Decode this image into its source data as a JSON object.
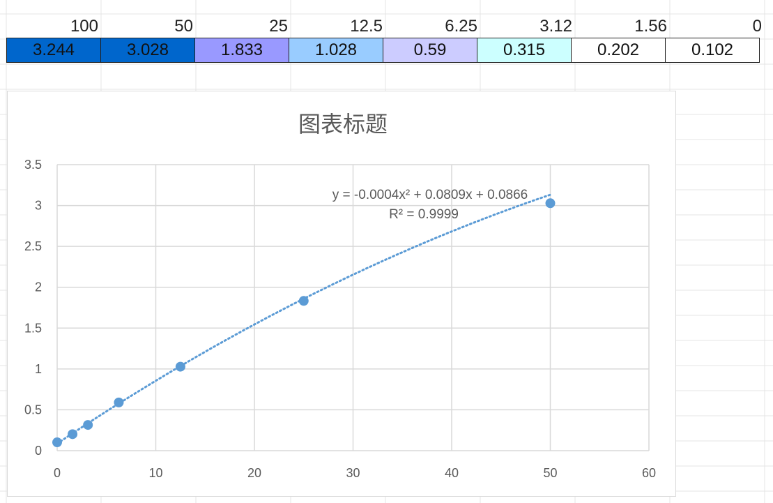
{
  "sheet": {
    "header_row": [
      "100",
      "50",
      "25",
      "12.5",
      "6.25",
      "3.12",
      "1.56",
      "0"
    ],
    "value_row": [
      "3.244",
      "3.028",
      "1.833",
      "1.028",
      "0.59",
      "0.315",
      "0.202",
      "0.102"
    ],
    "value_fills": [
      "#0066cc",
      "#0066cc",
      "#9999ff",
      "#99ccff",
      "#ccccff",
      "#ccffff",
      "#ffffff",
      "#ffffff"
    ]
  },
  "chart_data": {
    "type": "scatter",
    "title": "图表标题",
    "xlabel": "",
    "ylabel": "",
    "xlim": [
      0,
      60
    ],
    "ylim": [
      0,
      3.5
    ],
    "x_ticks": [
      "0",
      "10",
      "20",
      "30",
      "40",
      "50",
      "60"
    ],
    "y_ticks": [
      "0",
      "0.5",
      "1",
      "1.5",
      "2",
      "2.5",
      "3",
      "3.5"
    ],
    "grid": true,
    "series": [
      {
        "x": [
          0,
          1.56,
          3.12,
          6.25,
          12.5,
          25,
          50
        ],
        "y": [
          0.102,
          0.202,
          0.315,
          0.59,
          1.028,
          1.833,
          3.028
        ],
        "color": "#5b9bd5"
      }
    ],
    "trendline": {
      "type": "polynomial",
      "coefficients": [
        -0.0004,
        0.0809,
        0.0866
      ],
      "equation": "y = -0.0004x² + 0.0809x + 0.0866",
      "r_squared": "R² = 0.9999",
      "color": "#5b9bd5"
    }
  }
}
